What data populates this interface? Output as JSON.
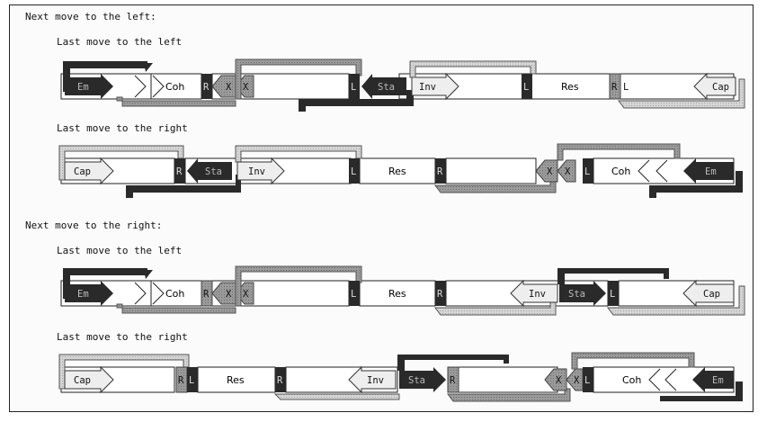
{
  "headings": {
    "left": "Next move to the left:",
    "right": "Next move to the right:"
  },
  "subheadings": {
    "row1": "Last move to the left",
    "row2": "Last move to the right",
    "row3": "Last move to the left",
    "row4": "Last move to the right"
  },
  "labels": {
    "em": "Em",
    "coh": "Coh",
    "res": "Res",
    "inv": "Inv",
    "sta": "Sta",
    "cap": "Cap",
    "l": "L",
    "r": "R",
    "x": "X"
  },
  "colors": {
    "dark": "#2a2a2a",
    "mid": "#8c8c8c",
    "light": "#c8c8c8",
    "line": "#222222"
  }
}
